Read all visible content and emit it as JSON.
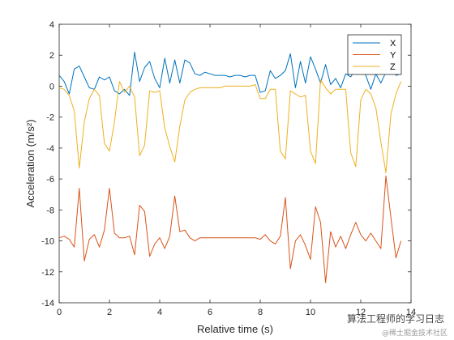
{
  "chart_data": {
    "type": "line",
    "xlabel": "Relative time (s)",
    "ylabel": "Acceleration (m/s²)",
    "xlim": [
      0,
      14
    ],
    "ylim": [
      -14,
      4
    ],
    "xticks": [
      0,
      2,
      4,
      6,
      8,
      10,
      12,
      14
    ],
    "yticks": [
      -14,
      -12,
      -10,
      -8,
      -6,
      -4,
      -2,
      0,
      2,
      4
    ],
    "grid": false,
    "legend": "top-right",
    "x": [
      0,
      0.2,
      0.4,
      0.6,
      0.8,
      1.0,
      1.2,
      1.4,
      1.6,
      1.8,
      2.0,
      2.2,
      2.4,
      2.6,
      2.8,
      3.0,
      3.2,
      3.4,
      3.6,
      3.8,
      4.0,
      4.2,
      4.4,
      4.6,
      4.8,
      5.0,
      5.2,
      5.4,
      5.6,
      5.8,
      6.0,
      6.2,
      6.4,
      6.6,
      6.8,
      7.0,
      7.2,
      7.4,
      7.6,
      7.8,
      8.0,
      8.2,
      8.4,
      8.6,
      8.8,
      9.0,
      9.2,
      9.4,
      9.6,
      9.8,
      10.0,
      10.2,
      10.4,
      10.6,
      10.8,
      11.0,
      11.2,
      11.4,
      11.6,
      11.8,
      12.0,
      12.2,
      12.4,
      12.6,
      12.8,
      13.0,
      13.2,
      13.4,
      13.6
    ],
    "series": [
      {
        "name": "X",
        "color": "#0072BD",
        "values": [
          0.7,
          0.3,
          -0.5,
          1.1,
          1.3,
          0.6,
          -0.1,
          -0.2,
          0.6,
          0.4,
          0.6,
          -0.3,
          -0.5,
          -0.2,
          -0.6,
          2.2,
          0.3,
          1.2,
          1.6,
          0.5,
          -0.1,
          1.8,
          0.2,
          1.7,
          0.2,
          1.7,
          1.5,
          0.8,
          0.7,
          0.9,
          0.8,
          0.7,
          0.7,
          0.7,
          0.6,
          0.7,
          0.7,
          0.6,
          0.7,
          0.7,
          -0.4,
          -0.3,
          1.0,
          0.5,
          0.7,
          1.0,
          2.1,
          -0.1,
          1.6,
          0.2,
          1.9,
          1.1,
          0.2,
          1.4,
          0.1,
          0.5,
          -0.1,
          0.8,
          0.6,
          1.1,
          1.4,
          0.7,
          -0.2,
          0.8,
          0.2,
          0.9,
          1.6,
          0.7,
          0.8
        ]
      },
      {
        "name": "Y",
        "color": "#D95319",
        "values": [
          -9.8,
          -9.7,
          -9.9,
          -10.4,
          -6.6,
          -11.3,
          -9.9,
          -9.6,
          -10.4,
          -9.3,
          -6.6,
          -9.5,
          -9.8,
          -9.8,
          -9.7,
          -10.9,
          -7.7,
          -8.1,
          -11.0,
          -10.2,
          -9.8,
          -10.5,
          -9.7,
          -7.1,
          -9.4,
          -9.3,
          -9.8,
          -10.0,
          -9.8,
          -9.8,
          -9.8,
          -9.8,
          -9.8,
          -9.8,
          -9.8,
          -9.8,
          -9.8,
          -9.8,
          -9.8,
          -9.8,
          -9.9,
          -9.6,
          -10.0,
          -10.2,
          -9.7,
          -7.2,
          -11.8,
          -10.0,
          -9.6,
          -10.3,
          -11.2,
          -7.8,
          -8.8,
          -12.7,
          -9.4,
          -10.4,
          -9.7,
          -10.5,
          -9.6,
          -8.8,
          -9.6,
          -10.0,
          -9.5,
          -10.0,
          -10.5,
          -5.8,
          -8.5,
          -11.1,
          -10.0
        ]
      },
      {
        "name": "Z",
        "color": "#EDB120",
        "values": [
          -0.1,
          -0.2,
          -0.6,
          -1.6,
          -5.3,
          -2.3,
          -0.8,
          -0.2,
          -0.6,
          -3.7,
          -4.2,
          -2.3,
          0.3,
          -0.4,
          0.0,
          -0.7,
          -4.5,
          -3.8,
          -0.3,
          -0.4,
          -0.3,
          -2.7,
          -3.9,
          -4.9,
          -2.6,
          -0.9,
          -0.4,
          -0.2,
          -0.1,
          -0.1,
          -0.1,
          -0.1,
          -0.1,
          0.0,
          0.0,
          0.0,
          0.0,
          0.0,
          0.0,
          0.1,
          -0.8,
          -0.8,
          -0.2,
          -0.2,
          -4.2,
          -4.7,
          -0.3,
          -0.5,
          -0.7,
          -0.6,
          -4.2,
          -5.0,
          0.4,
          -0.1,
          -0.5,
          -0.2,
          -0.2,
          -0.2,
          -4.3,
          -5.2,
          -0.9,
          -0.2,
          -0.5,
          -1.4,
          -3.6,
          -5.6,
          -1.8,
          -0.5,
          0.3
        ]
      }
    ]
  },
  "watermark": {
    "main": "算法工程师的学习日志",
    "sub": "@稀土掘金技术社区"
  }
}
